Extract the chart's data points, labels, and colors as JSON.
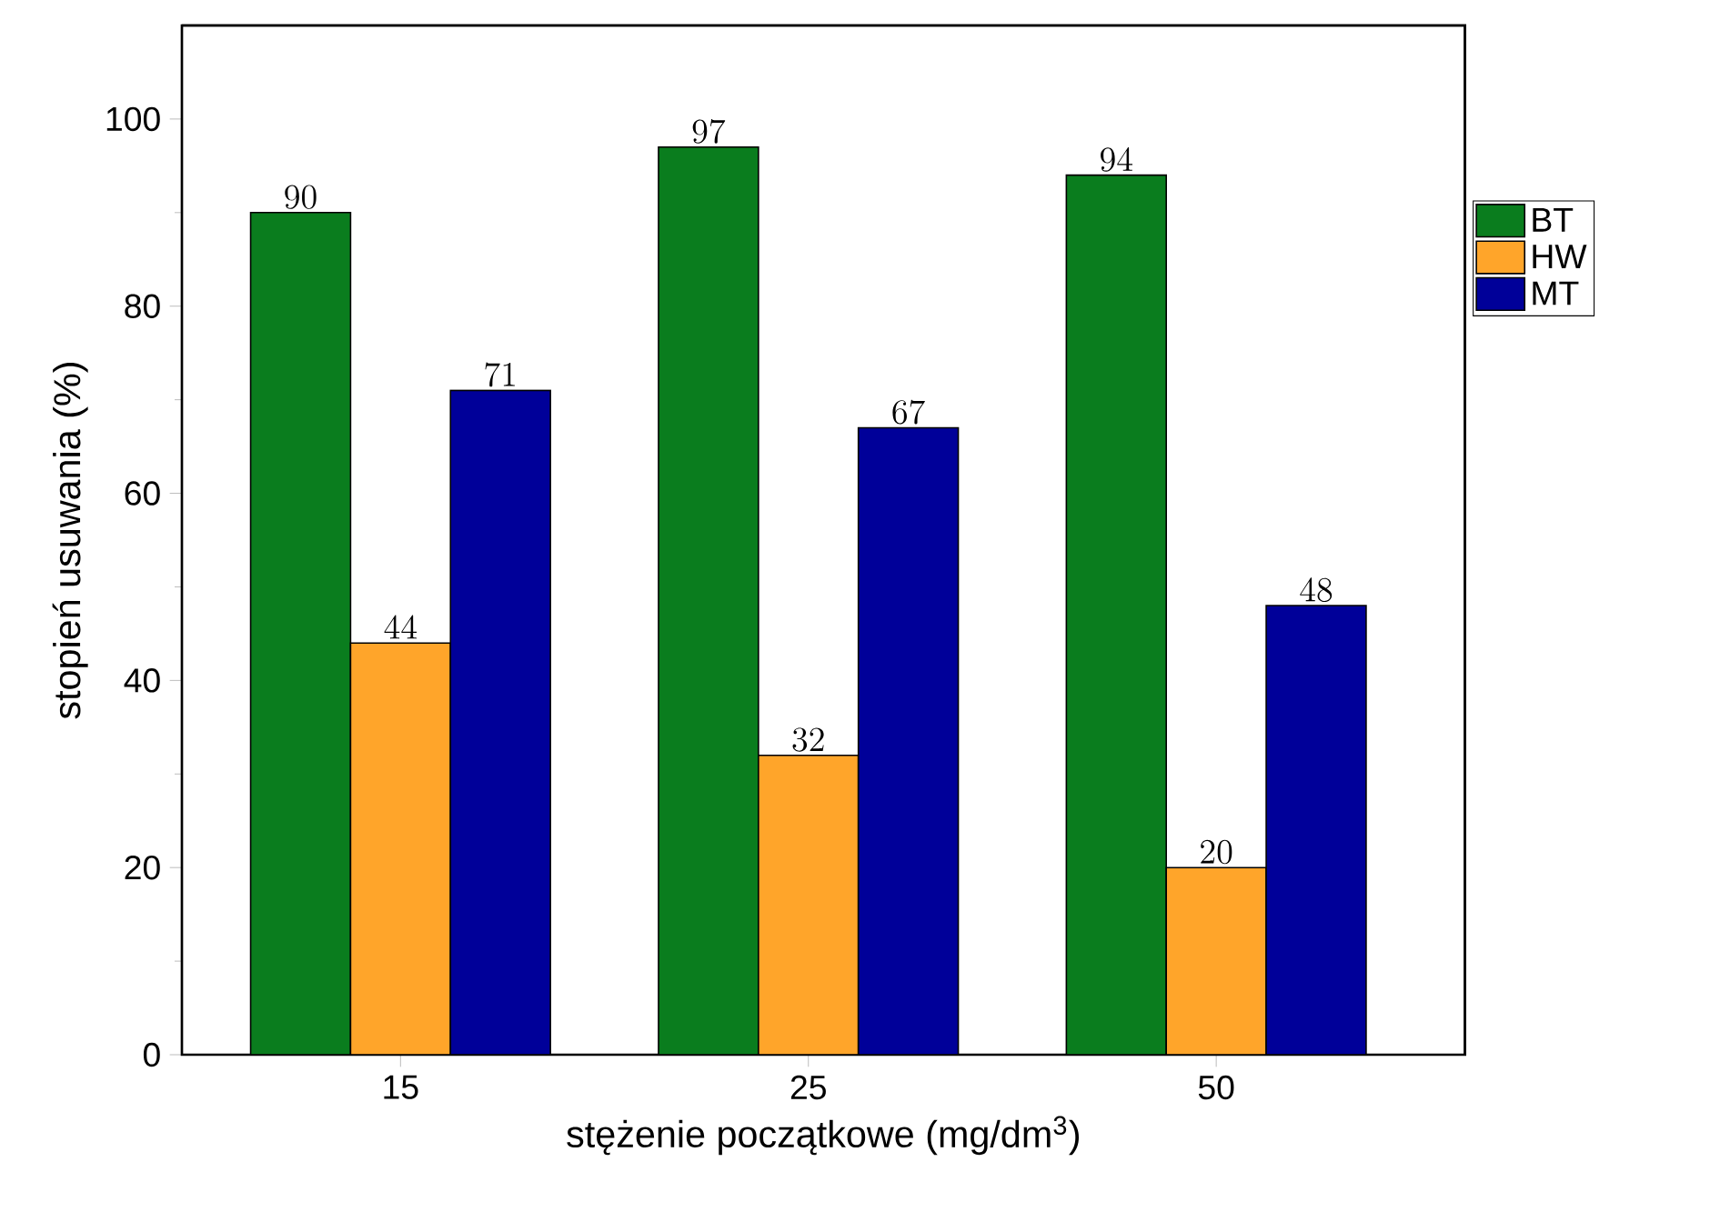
{
  "chart_data": {
    "type": "bar",
    "xlabel": "stężenie początkowe (mg/dm$^{3}$)",
    "ylabel": "stopień usuwania (%)",
    "categories": [
      "15",
      "25",
      "50"
    ],
    "series": [
      {
        "name": "BT",
        "color": "#0a7d1e",
        "values": [
          90,
          97,
          94
        ]
      },
      {
        "name": "HW",
        "color": "#ffa52a",
        "values": [
          44,
          32,
          20
        ]
      },
      {
        "name": "MT",
        "color": "#000099",
        "values": [
          71,
          67,
          48
        ]
      }
    ],
    "ylim": [
      0,
      110
    ],
    "yticks": [
      0,
      20,
      40,
      60,
      80,
      100
    ],
    "data_labels": true,
    "legend": "top right",
    "grid": false
  }
}
